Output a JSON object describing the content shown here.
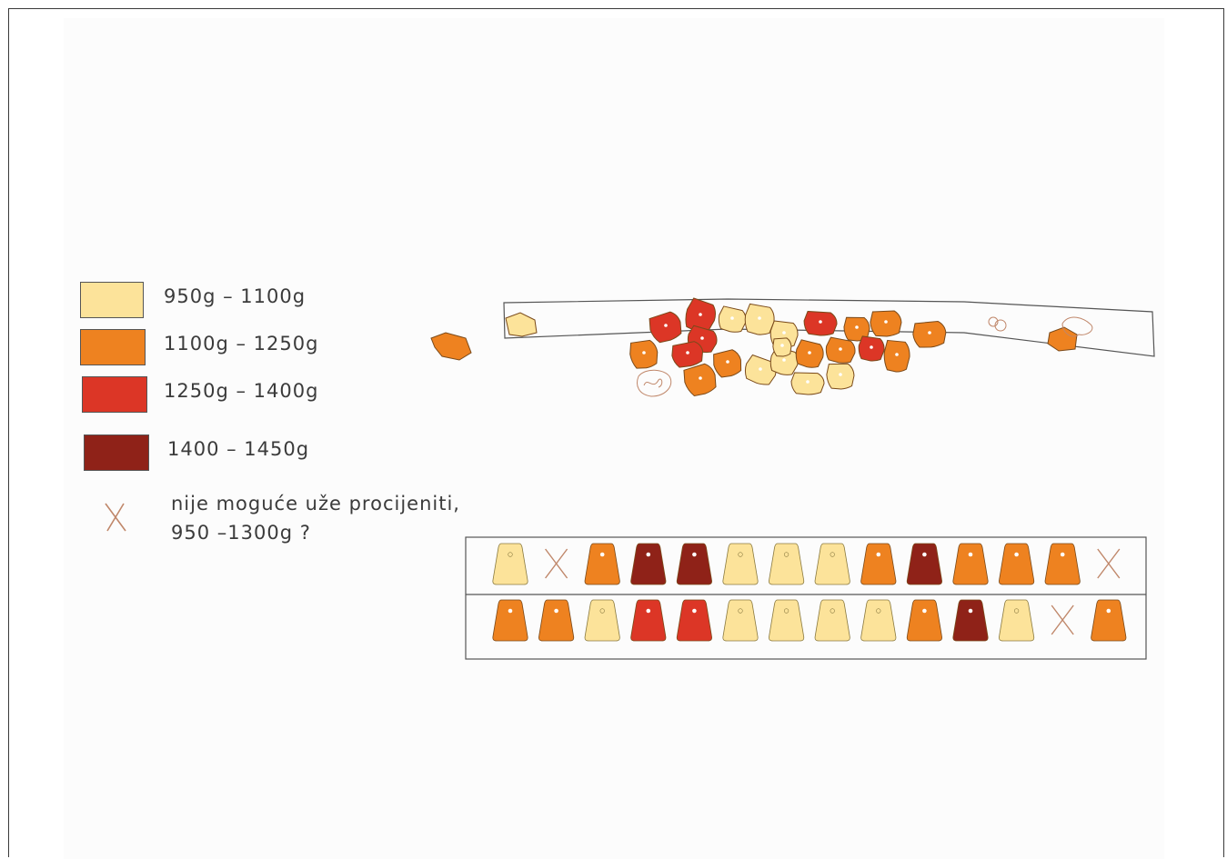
{
  "colors": {
    "light": "#fce39a",
    "orange": "#ee8220",
    "red": "#dc3626",
    "dark_red": "#8f2218",
    "cross": "#c0876a",
    "outline": "#7a4a1a",
    "frame": "#3a3a3a"
  },
  "legend": {
    "items": [
      {
        "label": "950g  –  1100g",
        "color": "#fce39a"
      },
      {
        "label": "1100g  –  1250g",
        "color": "#ee8220"
      },
      {
        "label": "1250g  –  1400g",
        "color": "#dc3626"
      },
      {
        "label": "1400  –  1450g",
        "color": "#8f2218"
      }
    ],
    "unknown_line1": "nije moguće uže procijeniti,",
    "unknown_line2": "950  –1300g  ?"
  },
  "weight_rows": {
    "row1": [
      "light",
      "x",
      "orange",
      "dark_red",
      "dark_red",
      "light",
      "light",
      "light",
      "orange",
      "dark_red",
      "orange",
      "orange",
      "orange",
      "x"
    ],
    "row2": [
      "orange",
      "orange",
      "light",
      "red",
      "red",
      "light",
      "light",
      "light",
      "light",
      "orange",
      "dark_red",
      "light",
      "x",
      "orange"
    ]
  }
}
